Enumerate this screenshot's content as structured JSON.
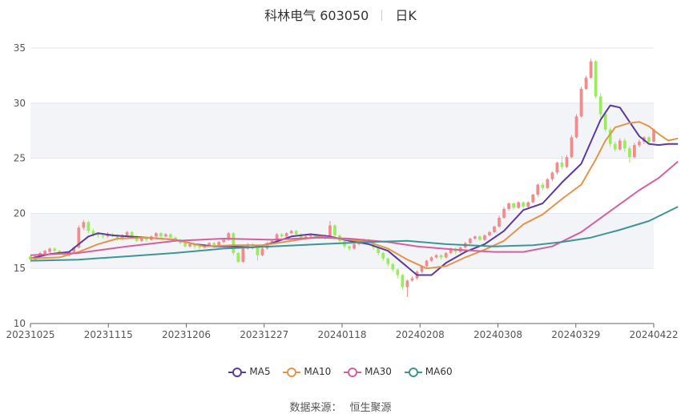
{
  "header": {
    "stock": "科林电气 603050",
    "period": "日K"
  },
  "source": {
    "label": "数据来源：",
    "value": "恒生聚源"
  },
  "colors": {
    "up": "#f28c8c",
    "down": "#9aec5e",
    "MA5": "#5b3a9e",
    "MA10": "#e3954a",
    "MA30": "#d4609d",
    "MA60": "#3e9595",
    "grid": "#e4e6ee",
    "band": "#f3f4f8"
  },
  "chart_data": {
    "type": "candlestick",
    "ylim": [
      10,
      35
    ],
    "yticks": [
      10,
      15,
      20,
      25,
      30,
      35
    ],
    "x_tick_labels": [
      "20231025",
      "20231115",
      "20231206",
      "20231227",
      "20240118",
      "20240208",
      "20240308",
      "20240329",
      "20240422"
    ],
    "legend": [
      "MA5",
      "MA10",
      "MA30",
      "MA60"
    ],
    "candles": [
      [
        16.1,
        15.8,
        16.2,
        15.7
      ],
      [
        15.8,
        16.1,
        16.2,
        15.7
      ],
      [
        16.1,
        16.4,
        16.5,
        16.0
      ],
      [
        16.3,
        16.6,
        16.7,
        16.2
      ],
      [
        16.5,
        16.8,
        16.9,
        16.4
      ],
      [
        16.8,
        16.6,
        16.9,
        16.5
      ],
      [
        16.6,
        16.4,
        16.7,
        16.3
      ],
      [
        16.4,
        16.2,
        16.5,
        16.1
      ],
      [
        16.2,
        16.5,
        16.6,
        16.1
      ],
      [
        16.5,
        16.9,
        17.0,
        16.4
      ],
      [
        16.9,
        18.7,
        18.9,
        16.8
      ],
      [
        18.7,
        19.2,
        19.4,
        18.5
      ],
      [
        19.2,
        18.4,
        19.3,
        18.2
      ],
      [
        18.4,
        18.1,
        18.6,
        17.9
      ],
      [
        18.1,
        18.0,
        18.3,
        17.8
      ],
      [
        18.0,
        17.9,
        18.2,
        17.7
      ],
      [
        17.9,
        18.1,
        18.3,
        17.8
      ],
      [
        18.1,
        18.0,
        18.2,
        17.8
      ],
      [
        18.0,
        17.7,
        18.1,
        17.5
      ],
      [
        17.7,
        18.0,
        18.1,
        17.6
      ],
      [
        18.0,
        18.3,
        18.4,
        17.9
      ],
      [
        18.3,
        17.9,
        18.4,
        17.7
      ],
      [
        17.9,
        17.5,
        18.0,
        17.4
      ],
      [
        17.5,
        17.8,
        17.9,
        17.4
      ],
      [
        17.8,
        17.6,
        17.9,
        17.4
      ],
      [
        17.6,
        17.9,
        18.0,
        17.5
      ],
      [
        17.9,
        18.2,
        18.3,
        17.8
      ],
      [
        18.2,
        17.9,
        18.3,
        17.7
      ],
      [
        17.9,
        18.1,
        18.2,
        17.8
      ],
      [
        18.1,
        17.8,
        18.2,
        17.6
      ],
      [
        17.8,
        17.6,
        17.9,
        17.4
      ],
      [
        17.6,
        17.3,
        17.7,
        17.2
      ],
      [
        17.3,
        17.0,
        17.4,
        16.9
      ],
      [
        17.0,
        17.2,
        17.3,
        16.9
      ],
      [
        17.2,
        17.0,
        17.3,
        16.8
      ],
      [
        17.0,
        16.9,
        17.1,
        16.7
      ],
      [
        16.9,
        17.1,
        17.2,
        16.8
      ],
      [
        17.1,
        17.3,
        17.4,
        17.0
      ],
      [
        17.3,
        17.1,
        17.4,
        16.9
      ],
      [
        17.1,
        17.4,
        17.5,
        17.0
      ],
      [
        17.4,
        17.6,
        17.7,
        17.3
      ],
      [
        17.6,
        18.2,
        18.3,
        17.5
      ],
      [
        18.2,
        16.4,
        18.3,
        16.2
      ],
      [
        16.4,
        15.6,
        16.5,
        15.5
      ],
      [
        15.6,
        16.8,
        16.9,
        15.5
      ],
      [
        16.8,
        17.2,
        17.3,
        16.7
      ],
      [
        17.2,
        16.9,
        17.3,
        16.7
      ],
      [
        16.9,
        16.2,
        17.0,
        15.7
      ],
      [
        16.2,
        16.8,
        16.9,
        16.1
      ],
      [
        16.8,
        17.3,
        17.4,
        16.7
      ],
      [
        17.3,
        17.5,
        17.6,
        17.2
      ],
      [
        17.5,
        18.1,
        18.2,
        17.4
      ],
      [
        18.1,
        17.9,
        18.2,
        17.8
      ],
      [
        17.9,
        18.2,
        18.3,
        17.8
      ],
      [
        18.2,
        18.4,
        18.5,
        18.1
      ],
      [
        18.4,
        18.1,
        18.5,
        17.9
      ],
      [
        18.1,
        17.7,
        18.2,
        17.6
      ],
      [
        17.7,
        17.9,
        18.0,
        17.6
      ],
      [
        17.9,
        18.0,
        18.1,
        17.8
      ],
      [
        18.0,
        17.8,
        18.1,
        17.7
      ],
      [
        17.8,
        18.0,
        18.1,
        17.7
      ],
      [
        18.0,
        17.8,
        18.1,
        17.6
      ],
      [
        17.8,
        18.9,
        19.3,
        17.7
      ],
      [
        18.9,
        18.0,
        19.0,
        17.8
      ],
      [
        18.0,
        17.5,
        18.1,
        17.3
      ],
      [
        17.5,
        17.0,
        17.6,
        16.8
      ],
      [
        17.0,
        16.8,
        17.1,
        16.6
      ],
      [
        16.8,
        17.2,
        17.3,
        16.7
      ],
      [
        17.2,
        17.4,
        17.5,
        17.1
      ],
      [
        17.4,
        17.6,
        17.7,
        17.3
      ],
      [
        17.6,
        17.3,
        17.7,
        17.1
      ],
      [
        17.3,
        16.9,
        17.4,
        16.7
      ],
      [
        16.9,
        16.4,
        17.0,
        16.2
      ],
      [
        16.4,
        15.9,
        16.5,
        15.7
      ],
      [
        15.9,
        15.4,
        16.0,
        15.2
      ],
      [
        15.4,
        14.9,
        15.5,
        14.7
      ],
      [
        14.9,
        14.4,
        15.0,
        14.1
      ],
      [
        14.4,
        13.3,
        14.5,
        13.1
      ],
      [
        13.3,
        13.9,
        14.0,
        12.4
      ],
      [
        13.9,
        14.1,
        14.3,
        13.8
      ],
      [
        14.1,
        14.7,
        14.8,
        14.0
      ],
      [
        14.7,
        15.2,
        15.3,
        14.6
      ],
      [
        15.2,
        15.7,
        15.8,
        15.1
      ],
      [
        15.7,
        16.0,
        16.1,
        15.6
      ],
      [
        16.0,
        16.2,
        16.3,
        15.9
      ],
      [
        16.2,
        16.0,
        16.3,
        15.8
      ],
      [
        16.0,
        16.4,
        16.5,
        15.9
      ],
      [
        16.4,
        16.8,
        16.9,
        16.3
      ],
      [
        16.8,
        16.5,
        16.9,
        16.3
      ],
      [
        16.5,
        16.9,
        17.0,
        16.4
      ],
      [
        16.9,
        17.3,
        17.4,
        16.8
      ],
      [
        17.3,
        17.7,
        17.8,
        17.2
      ],
      [
        17.7,
        17.9,
        18.0,
        17.6
      ],
      [
        17.9,
        17.6,
        18.0,
        17.5
      ],
      [
        17.6,
        18.0,
        18.1,
        17.5
      ],
      [
        18.0,
        18.3,
        18.4,
        17.9
      ],
      [
        18.3,
        18.8,
        18.9,
        18.2
      ],
      [
        18.8,
        19.6,
        19.8,
        18.7
      ],
      [
        19.6,
        20.4,
        20.6,
        19.5
      ],
      [
        20.4,
        20.9,
        21.0,
        20.2
      ],
      [
        20.9,
        20.5,
        21.0,
        20.3
      ],
      [
        20.5,
        21.0,
        21.1,
        20.4
      ],
      [
        21.0,
        20.6,
        21.1,
        20.4
      ],
      [
        20.6,
        21.0,
        21.1,
        20.5
      ],
      [
        21.0,
        21.7,
        21.8,
        20.9
      ],
      [
        21.7,
        22.6,
        22.7,
        21.5
      ],
      [
        22.6,
        22.3,
        22.8,
        22.1
      ],
      [
        22.3,
        23.1,
        23.2,
        22.2
      ],
      [
        23.1,
        23.7,
        23.8,
        22.9
      ],
      [
        23.7,
        24.6,
        24.7,
        23.5
      ],
      [
        24.6,
        24.2,
        25.2,
        24.0
      ],
      [
        24.2,
        25.1,
        25.3,
        24.1
      ],
      [
        25.1,
        26.9,
        27.1,
        25.0
      ],
      [
        26.9,
        28.8,
        29.0,
        26.8
      ],
      [
        28.8,
        31.3,
        31.5,
        28.7
      ],
      [
        31.3,
        32.3,
        32.5,
        31.2
      ],
      [
        32.3,
        33.8,
        34.0,
        32.2
      ],
      [
        33.8,
        30.6,
        33.9,
        30.4
      ],
      [
        30.6,
        29.0,
        30.9,
        28.7
      ],
      [
        29.0,
        27.6,
        29.2,
        27.4
      ],
      [
        27.6,
        26.3,
        27.8,
        26.0
      ],
      [
        26.3,
        25.8,
        26.5,
        25.6
      ],
      [
        25.8,
        26.6,
        26.8,
        25.7
      ],
      [
        26.6,
        25.9,
        26.8,
        25.6
      ],
      [
        25.9,
        25.1,
        26.1,
        24.6
      ],
      [
        25.1,
        26.2,
        26.4,
        25.0
      ],
      [
        26.2,
        26.5,
        26.7,
        26.0
      ],
      [
        26.5,
        26.9,
        27.0,
        26.3
      ],
      [
        26.9,
        26.5,
        27.0,
        26.3
      ],
      [
        26.5,
        27.6,
        27.7,
        26.4
      ]
    ],
    "series": [
      {
        "name": "MA5",
        "points": [
          [
            0,
            15.9
          ],
          [
            4,
            16.3
          ],
          [
            8,
            16.5
          ],
          [
            10,
            17.2
          ],
          [
            12,
            17.9
          ],
          [
            14,
            18.2
          ],
          [
            17,
            18.0
          ],
          [
            24,
            17.8
          ],
          [
            30,
            17.6
          ],
          [
            34,
            17.2
          ],
          [
            38,
            17.0
          ],
          [
            42,
            17.0
          ],
          [
            46,
            16.9
          ],
          [
            50,
            17.3
          ],
          [
            54,
            17.9
          ],
          [
            58,
            18.1
          ],
          [
            62,
            17.9
          ],
          [
            66,
            17.5
          ],
          [
            70,
            17.2
          ],
          [
            74,
            16.6
          ],
          [
            77,
            15.5
          ],
          [
            80,
            14.4
          ],
          [
            83,
            14.4
          ],
          [
            86,
            15.5
          ],
          [
            90,
            16.5
          ],
          [
            94,
            17.2
          ],
          [
            98,
            18.4
          ],
          [
            102,
            20.3
          ],
          [
            106,
            20.9
          ],
          [
            110,
            22.8
          ],
          [
            114,
            24.5
          ],
          [
            118,
            28.5
          ],
          [
            120,
            29.8
          ],
          [
            122,
            29.6
          ],
          [
            124,
            28.3
          ],
          [
            126,
            27.0
          ],
          [
            128,
            26.3
          ],
          [
            130,
            26.2
          ],
          [
            132,
            26.3
          ],
          [
            134,
            26.3
          ]
        ]
      },
      {
        "name": "MA10",
        "points": [
          [
            0,
            15.9
          ],
          [
            6,
            16.0
          ],
          [
            10,
            16.5
          ],
          [
            14,
            17.2
          ],
          [
            18,
            17.7
          ],
          [
            24,
            17.8
          ],
          [
            30,
            17.6
          ],
          [
            36,
            17.0
          ],
          [
            42,
            17.1
          ],
          [
            48,
            17.1
          ],
          [
            54,
            17.5
          ],
          [
            60,
            17.9
          ],
          [
            66,
            17.6
          ],
          [
            70,
            17.4
          ],
          [
            74,
            16.8
          ],
          [
            78,
            15.8
          ],
          [
            82,
            15.0
          ],
          [
            86,
            15.2
          ],
          [
            90,
            16.0
          ],
          [
            94,
            16.7
          ],
          [
            98,
            17.5
          ],
          [
            102,
            19.0
          ],
          [
            106,
            19.9
          ],
          [
            110,
            21.3
          ],
          [
            114,
            22.6
          ],
          [
            117,
            24.9
          ],
          [
            119,
            26.6
          ],
          [
            121,
            27.8
          ],
          [
            124,
            28.2
          ],
          [
            126,
            28.3
          ],
          [
            128,
            27.9
          ],
          [
            130,
            27.2
          ],
          [
            132,
            26.6
          ],
          [
            134,
            26.8
          ]
        ]
      },
      {
        "name": "MA30",
        "points": [
          [
            0,
            16.2
          ],
          [
            10,
            16.4
          ],
          [
            20,
            17.0
          ],
          [
            30,
            17.5
          ],
          [
            40,
            17.7
          ],
          [
            50,
            17.6
          ],
          [
            60,
            17.8
          ],
          [
            66,
            17.7
          ],
          [
            74,
            17.4
          ],
          [
            80,
            17.0
          ],
          [
            88,
            16.7
          ],
          [
            96,
            16.5
          ],
          [
            102,
            16.5
          ],
          [
            108,
            17.0
          ],
          [
            114,
            18.3
          ],
          [
            120,
            20.2
          ],
          [
            126,
            22.1
          ],
          [
            130,
            23.2
          ],
          [
            134,
            24.7
          ]
        ]
      },
      {
        "name": "MA60",
        "points": [
          [
            0,
            15.7
          ],
          [
            10,
            15.8
          ],
          [
            20,
            16.1
          ],
          [
            30,
            16.4
          ],
          [
            40,
            16.8
          ],
          [
            50,
            17.0
          ],
          [
            60,
            17.2
          ],
          [
            70,
            17.4
          ],
          [
            78,
            17.5
          ],
          [
            86,
            17.2
          ],
          [
            96,
            17.0
          ],
          [
            104,
            17.1
          ],
          [
            110,
            17.4
          ],
          [
            116,
            17.8
          ],
          [
            122,
            18.5
          ],
          [
            128,
            19.3
          ],
          [
            134,
            20.6
          ]
        ]
      }
    ]
  }
}
